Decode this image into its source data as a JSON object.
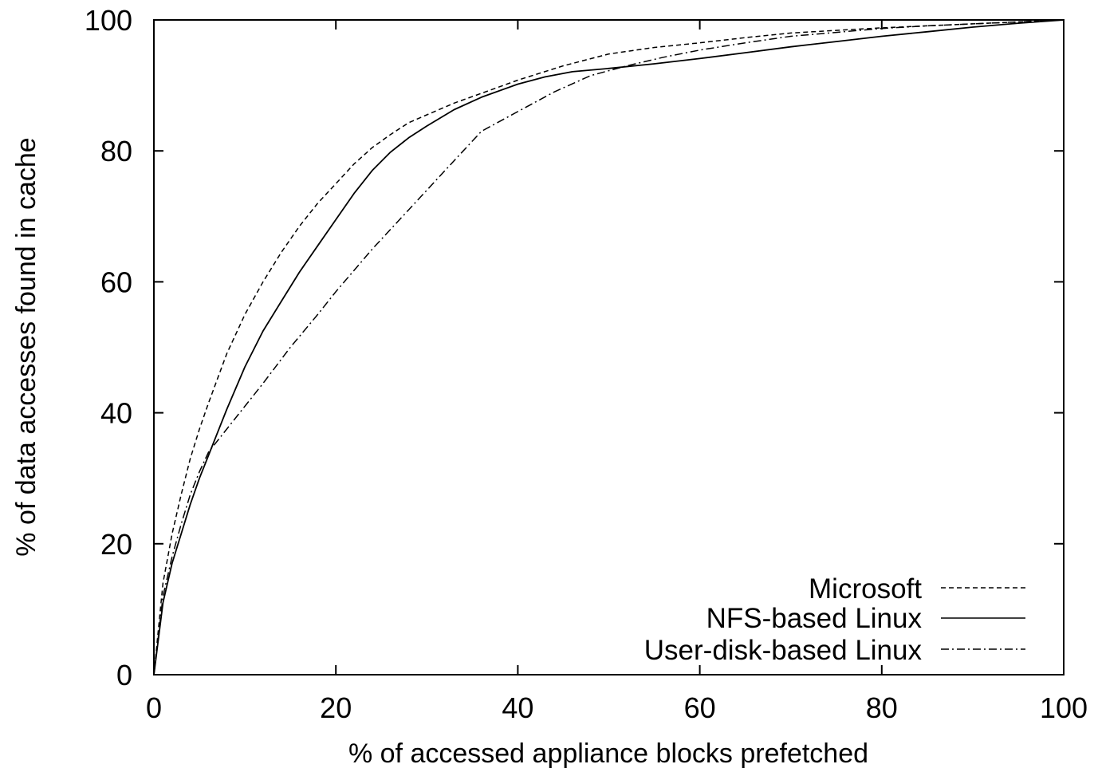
{
  "chart_data": {
    "type": "line",
    "title": "",
    "xlabel": "% of accessed appliance blocks prefetched",
    "ylabel": "% of data accesses found in cache",
    "xlim": [
      0,
      100
    ],
    "ylim": [
      0,
      100
    ],
    "xticks": [
      0,
      20,
      40,
      60,
      80,
      100
    ],
    "yticks": [
      0,
      20,
      40,
      60,
      80,
      100
    ],
    "grid": false,
    "legend_position": "bottom-right",
    "series": [
      {
        "name": "Microsoft",
        "dash": "dashed",
        "color": "#000000",
        "x": [
          0,
          1,
          2,
          3,
          4,
          5,
          6,
          8,
          10,
          12,
          14,
          16,
          18,
          20,
          22,
          24,
          26,
          28,
          30,
          33,
          36,
          40,
          45,
          50,
          55,
          60,
          65,
          70,
          75,
          80,
          85,
          90,
          95,
          100
        ],
        "y": [
          0,
          14,
          21.5,
          27.5,
          33,
          37.5,
          41.5,
          49,
          55,
          60,
          64.5,
          68.5,
          72,
          75,
          78,
          80.5,
          82.5,
          84.3,
          85.5,
          87.3,
          88.8,
          90.8,
          93,
          94.8,
          95.8,
          96.5,
          97.3,
          98,
          98.4,
          98.8,
          99.1,
          99.4,
          99.7,
          100
        ]
      },
      {
        "name": "NFS-based Linux",
        "dash": "solid",
        "color": "#000000",
        "x": [
          0,
          1,
          2,
          3,
          4,
          5,
          6,
          7,
          8,
          10,
          12,
          14,
          16,
          18,
          20,
          22,
          24,
          26,
          28,
          30,
          33,
          36,
          40,
          43,
          46,
          50,
          55,
          60,
          65,
          70,
          75,
          80,
          85,
          90,
          95,
          100
        ],
        "y": [
          0,
          11,
          17,
          21.5,
          26,
          30,
          33.5,
          37,
          40.5,
          47,
          52.5,
          57,
          61.5,
          65.5,
          69.5,
          73.5,
          77,
          79.8,
          82,
          83.8,
          86.3,
          88.2,
          90.2,
          91.3,
          92.1,
          92.6,
          93.3,
          94.1,
          95,
          95.9,
          96.7,
          97.5,
          98.2,
          98.9,
          99.5,
          100
        ]
      },
      {
        "name": "User-disk-based Linux",
        "dash": "dashdot",
        "color": "#000000",
        "x": [
          0,
          1,
          2,
          3,
          4,
          5,
          6,
          8,
          10,
          12,
          15,
          18,
          20,
          24,
          28,
          32,
          36,
          40,
          44,
          48,
          52,
          56,
          60,
          65,
          70,
          75,
          80,
          85,
          90,
          95,
          100
        ],
        "y": [
          0,
          12,
          18,
          23,
          27.5,
          31,
          34,
          37.5,
          41,
          44.5,
          50,
          55,
          58.5,
          65,
          71,
          77,
          83,
          86,
          89,
          91.5,
          93,
          94.3,
          95.4,
          96.5,
          97.5,
          98.1,
          98.7,
          99.1,
          99.4,
          99.7,
          100
        ]
      }
    ]
  }
}
